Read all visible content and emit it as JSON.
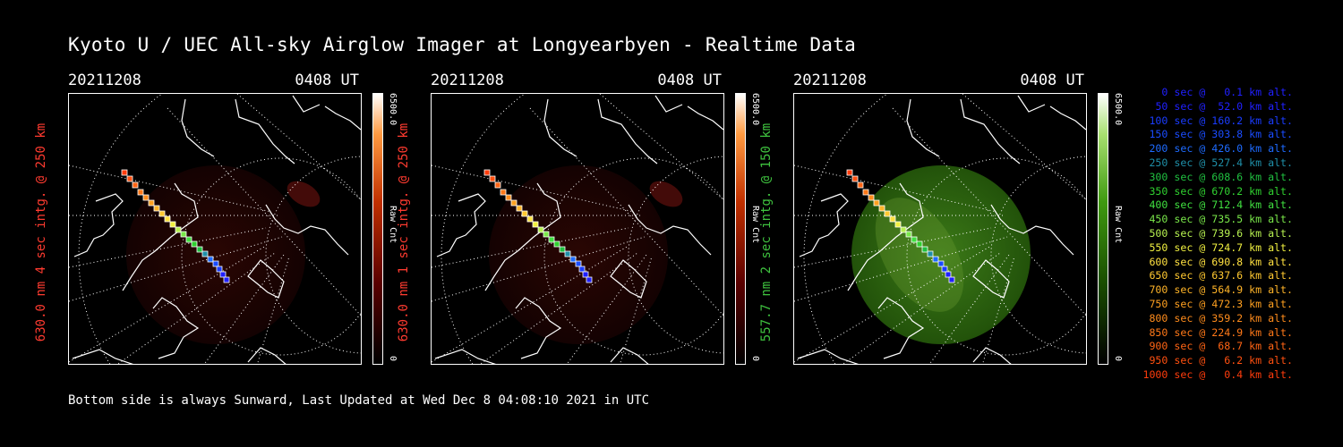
{
  "header": {
    "title": "Kyoto U / UEC All-sky Airglow Imager at Longyearbyen - Realtime Data"
  },
  "footer": {
    "text": "Bottom side is always Sunward, Last Updated at Wed Dec  8 04:08:10 2021 in UTC"
  },
  "panels": [
    {
      "date": "20211208",
      "time": "0408 UT",
      "ylabel": "630.0 nm 4 sec intg. @ 250 km",
      "label_color": "#ff3b30",
      "colorbar_max": "6500.0",
      "colorbar_min": "0",
      "colorbar_unit": "Raw Cnt",
      "colormap": "red"
    },
    {
      "date": "20211208",
      "time": "0408 UT",
      "ylabel": "630.0 nm 1 sec intg. @ 250 km",
      "label_color": "#ff3b30",
      "colorbar_max": "6500.0",
      "colorbar_min": "0",
      "colorbar_unit": "Raw Cnt",
      "colormap": "red"
    },
    {
      "date": "20211208",
      "time": "0408 UT",
      "ylabel": "557.7 nm 2 sec intg. @ 150 km",
      "label_color": "#3fc23f",
      "colorbar_max": "6500.0",
      "colorbar_min": "0",
      "colorbar_unit": "Raw Cnt",
      "colormap": "green"
    }
  ],
  "legend": {
    "items": [
      {
        "text": "0 sec @   0.1 km alt.",
        "color": "#2020ff"
      },
      {
        "text": "50 sec @  52.0 km alt.",
        "color": "#2020ff"
      },
      {
        "text": "100 sec @ 160.2 km alt.",
        "color": "#1a3cff"
      },
      {
        "text": "150 sec @ 303.8 km alt.",
        "color": "#1a4cff"
      },
      {
        "text": "200 sec @ 426.0 km alt.",
        "color": "#1e6bff"
      },
      {
        "text": "250 sec @ 527.4 km alt.",
        "color": "#1f8fa8"
      },
      {
        "text": "300 sec @ 608.6 km alt.",
        "color": "#20c040"
      },
      {
        "text": "350 sec @ 670.2 km alt.",
        "color": "#30d030"
      },
      {
        "text": "400 sec @ 712.4 km alt.",
        "color": "#40e040"
      },
      {
        "text": "450 sec @ 735.5 km alt.",
        "color": "#7ae84a"
      },
      {
        "text": "500 sec @ 739.6 km alt.",
        "color": "#b6f050"
      },
      {
        "text": "550 sec @ 724.7 km alt.",
        "color": "#f0f040"
      },
      {
        "text": "600 sec @ 690.8 km alt.",
        "color": "#ffe040"
      },
      {
        "text": "650 sec @ 637.6 km alt.",
        "color": "#ffc830"
      },
      {
        "text": "700 sec @ 564.9 km alt.",
        "color": "#ffb428"
      },
      {
        "text": "750 sec @ 472.3 km alt.",
        "color": "#ffa020"
      },
      {
        "text": "800 sec @ 359.2 km alt.",
        "color": "#ff8c1c"
      },
      {
        "text": "850 sec @ 224.9 km alt.",
        "color": "#ff7818"
      },
      {
        "text": "900 sec @  68.7 km alt.",
        "color": "#ff6414"
      },
      {
        "text": "950 sec @   6.2 km alt.",
        "color": "#ff5010"
      },
      {
        "text": "1000 sec @   0.4 km alt.",
        "color": "#ff3c0c"
      }
    ]
  }
}
